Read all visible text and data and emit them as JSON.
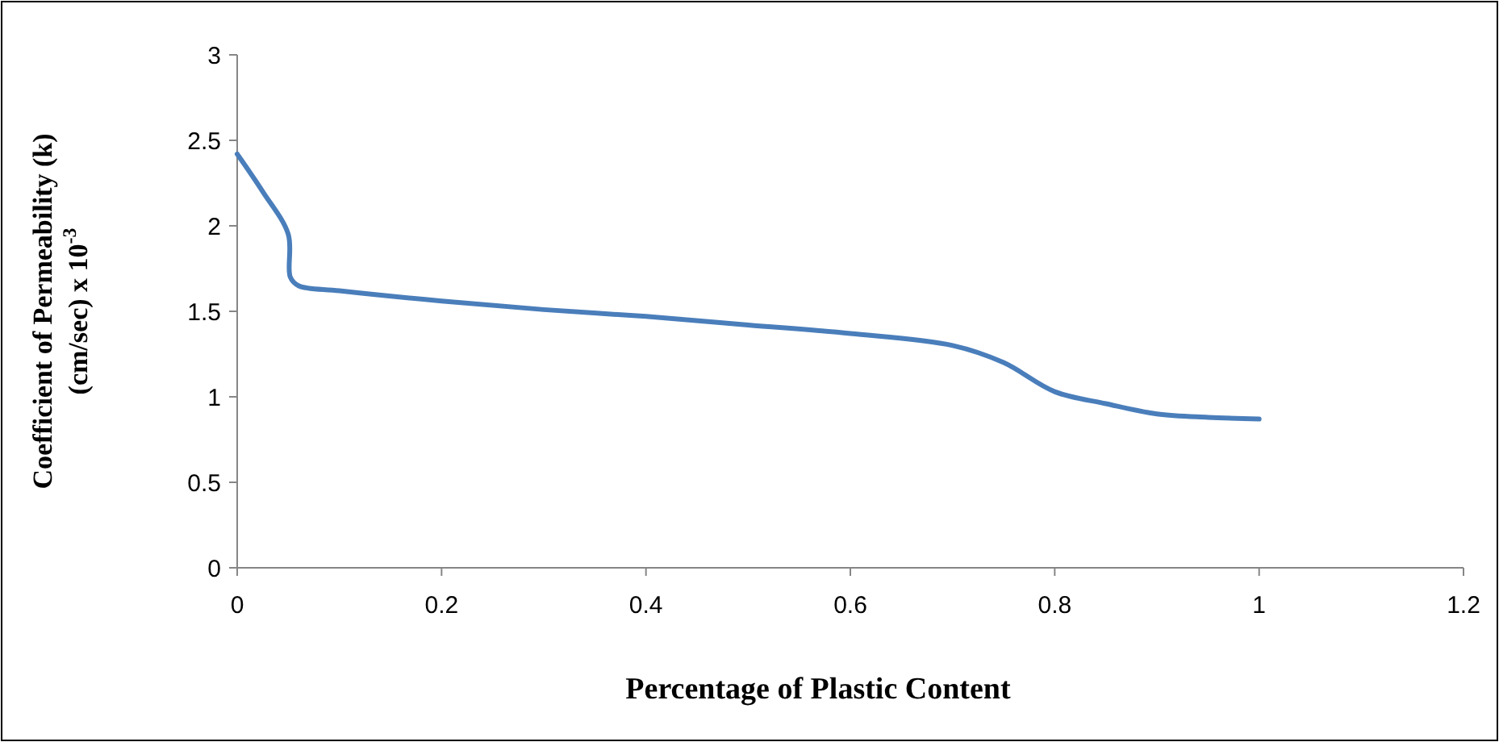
{
  "chart_data": {
    "type": "line",
    "xlabel": "Percentage of Plastic Content",
    "ylabel": "Coefficient of Permeability (k)\n(cm/sec) x 10$^{-3}$",
    "x": [
      0,
      0.025,
      0.05,
      0.052,
      0.06,
      0.1,
      0.2,
      0.3,
      0.4,
      0.5,
      0.6,
      0.7,
      0.75,
      0.8,
      0.85,
      0.9,
      0.95,
      1
    ],
    "series": [
      {
        "color": "#4a7ebb",
        "values": [
          2.42,
          2.2,
          1.95,
          1.7,
          1.65,
          1.62,
          1.56,
          1.51,
          1.47,
          1.42,
          1.37,
          1.3,
          1.2,
          1.03,
          0.96,
          0.9,
          0.88,
          0.87
        ]
      }
    ],
    "xlim": [
      0,
      1.2
    ],
    "xticks": [
      0,
      0.2,
      0.4,
      0.6,
      0.8,
      1,
      1.2
    ],
    "ylim": [
      0,
      3
    ],
    "yticks": [
      0,
      0.5,
      1,
      1.5,
      2,
      2.5,
      3
    ],
    "grid": false,
    "marker": "none",
    "line_style": "solid"
  }
}
